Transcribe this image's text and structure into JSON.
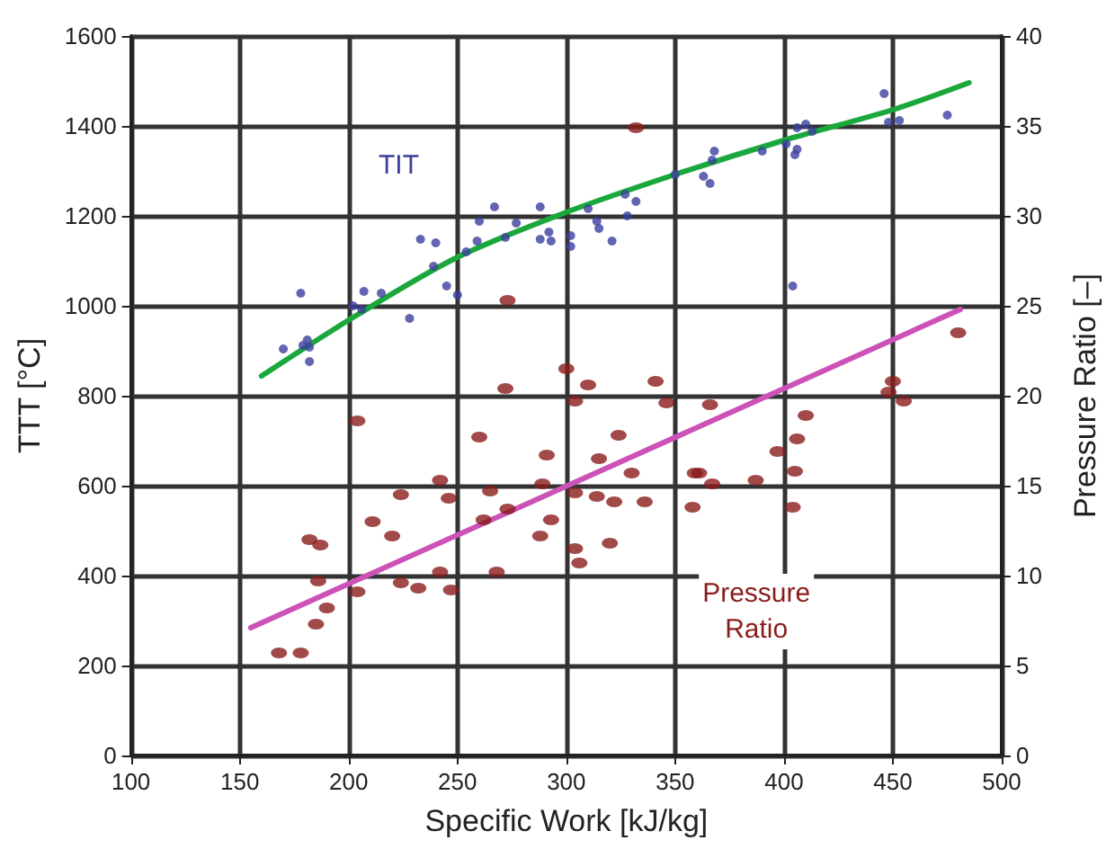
{
  "chart_data": {
    "type": "scatter",
    "xlabel": "Specific Work [kJ/kg]",
    "ylabel": "TTT [°C]",
    "y2label": "Pressure Ratio [–]",
    "xlim": [
      100,
      500
    ],
    "xticks": [
      100,
      150,
      200,
      250,
      300,
      350,
      400,
      450,
      500
    ],
    "ylim": [
      0,
      1600
    ],
    "yticks": [
      0,
      200,
      400,
      600,
      800,
      1000,
      1200,
      1400,
      1600
    ],
    "y2lim": [
      0,
      40
    ],
    "y2ticks": [
      0,
      5,
      10,
      15,
      20,
      25,
      30,
      35,
      40
    ],
    "grid": true,
    "legend": false,
    "marker": "circle",
    "series": [
      {
        "name": "TIT",
        "color": "#3b3f9e",
        "x": [
          170,
          178,
          179,
          181,
          182,
          182,
          202,
          207,
          206,
          215,
          228,
          233,
          240,
          239,
          245,
          250,
          254,
          259,
          260,
          267,
          272,
          277,
          288,
          288,
          292,
          293,
          302,
          302,
          310,
          314,
          315,
          321,
          328,
          332,
          327,
          350,
          363,
          366,
          367,
          368,
          390,
          401,
          405,
          406,
          406,
          410,
          413,
          404,
          446,
          448,
          453,
          475
        ],
        "values": [
          904,
          1028,
          912,
          924,
          908,
          876,
          1000,
          1032,
          992,
          1028,
          972,
          1148,
          1140,
          1088,
          1044,
          1024,
          1120,
          1144,
          1188,
          1220,
          1152,
          1184,
          1220,
          1148,
          1164,
          1144,
          1156,
          1132,
          1216,
          1188,
          1172,
          1144,
          1200,
          1232,
          1248,
          1292,
          1288,
          1272,
          1324,
          1344,
          1344,
          1360,
          1336,
          1348,
          1396,
          1404,
          1388,
          1044,
          1472,
          1408,
          1412,
          1424
        ]
      },
      {
        "name": "Pressure Ratio",
        "color": "#8b1c1c",
        "axis": "y2",
        "x": [
          168,
          178,
          185,
          190,
          186,
          182,
          187,
          204,
          211,
          204,
          224,
          220,
          224,
          232,
          242,
          246,
          242,
          247,
          260,
          265,
          262,
          273,
          272,
          268,
          289,
          291,
          288,
          293,
          300,
          310,
          304,
          304,
          304,
          306,
          324,
          315,
          320,
          330,
          314,
          322,
          273,
          332,
          341,
          346,
          366,
          336,
          359,
          361,
          367,
          387,
          358,
          397,
          406,
          410,
          405,
          404,
          450,
          448,
          455,
          480
        ],
        "values": [
          5.7,
          5.7,
          7.3,
          8.2,
          9.7,
          12.0,
          11.7,
          9.1,
          13.0,
          18.6,
          9.6,
          12.2,
          14.5,
          9.3,
          15.3,
          14.3,
          10.2,
          9.2,
          17.7,
          14.7,
          13.1,
          13.7,
          20.4,
          10.2,
          15.1,
          16.7,
          12.2,
          13.1,
          21.5,
          20.6,
          19.7,
          14.6,
          11.5,
          10.7,
          17.8,
          16.5,
          11.8,
          15.7,
          14.4,
          14.1,
          25.3,
          34.9,
          20.8,
          19.6,
          19.5,
          14.1,
          15.7,
          15.7,
          15.1,
          15.3,
          13.8,
          16.9,
          17.6,
          18.9,
          15.8,
          13.8,
          20.8,
          20.2,
          19.7,
          23.5
        ]
      },
      {
        "type": "line",
        "marker": "none",
        "color": "#1aa83c",
        "x": [
          160,
          204,
          250,
          300,
          350,
          400,
          450,
          485
        ],
        "values": [
          844,
          980,
          1108,
          1208,
          1292,
          1368,
          1436,
          1496
        ]
      },
      {
        "type": "line",
        "marker": "none",
        "color": "#cc52b8",
        "axis": "y2",
        "x": [
          155,
          481
        ],
        "values": [
          7.1,
          24.8
        ]
      }
    ]
  }
}
